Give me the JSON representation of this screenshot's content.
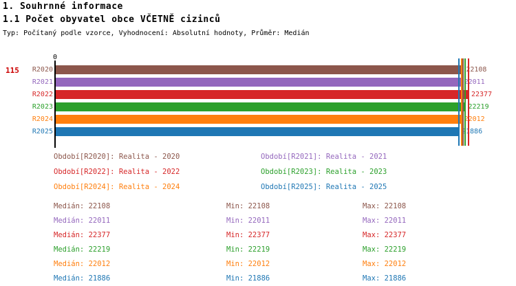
{
  "header": {
    "title": "1. Souhrnné informace",
    "subtitle": "1.1 Počet obyvatel obce VČETNĚ cizinců",
    "meta": "Typ: Počítaný podle vzorce, Vyhodnocení: Absolutní hodnoty, Průměr: Medián"
  },
  "chart": {
    "axis_left_value": "115",
    "axis_left_color": "#cc0000",
    "origin_label": "0",
    "rows": [
      {
        "label": "R2020",
        "value": 22108,
        "color": "#8c564b"
      },
      {
        "label": "R2021",
        "value": 22011,
        "color": "#9467bd"
      },
      {
        "label": "R2022",
        "value": 22377,
        "color": "#d62728"
      },
      {
        "label": "R2023",
        "value": 22219,
        "color": "#2ca02c"
      },
      {
        "label": "R2024",
        "value": 22012,
        "color": "#ff7f0e"
      },
      {
        "label": "R2025",
        "value": 21886,
        "color": "#1f77b4"
      }
    ]
  },
  "legend": {
    "columns": [
      [
        {
          "text": "Období[R2020]: Realita - 2020",
          "color": "#8c564b"
        },
        {
          "text": "Období[R2022]: Realita - 2022",
          "color": "#d62728"
        },
        {
          "text": "Období[R2024]: Realita - 2024",
          "color": "#ff7f0e"
        }
      ],
      [
        {
          "text": "Období[R2021]: Realita - 2021",
          "color": "#9467bd"
        },
        {
          "text": "Období[R2023]: Realita - 2023",
          "color": "#2ca02c"
        },
        {
          "text": "Období[R2025]: Realita - 2025",
          "color": "#1f77b4"
        }
      ]
    ]
  },
  "stats": {
    "column_labels": [
      "Medián",
      "Min",
      "Max"
    ],
    "rows": [
      {
        "color": "#8c564b",
        "median": 22108,
        "min": 22108,
        "max": 22108
      },
      {
        "color": "#9467bd",
        "median": 22011,
        "min": 22011,
        "max": 22011
      },
      {
        "color": "#d62728",
        "median": 22377,
        "min": 22377,
        "max": 22377
      },
      {
        "color": "#2ca02c",
        "median": 22219,
        "min": 22219,
        "max": 22219
      },
      {
        "color": "#ff7f0e",
        "median": 22012,
        "min": 22012,
        "max": 22012
      },
      {
        "color": "#1f77b4",
        "median": 21886,
        "min": 21886,
        "max": 21886
      }
    ]
  },
  "chart_data": {
    "type": "bar",
    "orientation": "horizontal",
    "title": "1.1 Počet obyvatel obce VČETNĚ cizinců",
    "categories": [
      "R2020",
      "R2021",
      "R2022",
      "R2023",
      "R2024",
      "R2025"
    ],
    "values": [
      22108,
      22011,
      22377,
      22219,
      22012,
      21886
    ],
    "colors": [
      "#8c564b",
      "#9467bd",
      "#d62728",
      "#2ca02c",
      "#ff7f0e",
      "#1f77b4"
    ],
    "series_legend": [
      "Realita - 2020",
      "Realita - 2021",
      "Realita - 2022",
      "Realita - 2023",
      "Realita - 2024",
      "Realita - 2025"
    ],
    "data_labels_shown": true,
    "value_markers": "colored vertical line at each series value",
    "origin_tick_label": "0",
    "left_axis_annotation": "115",
    "grid": false,
    "xlabel": "",
    "ylabel": "",
    "median": [
      22108,
      22011,
      22377,
      22219,
      22012,
      21886
    ],
    "min": [
      22108,
      22011,
      22377,
      22219,
      22012,
      21886
    ],
    "max": [
      22108,
      22011,
      22377,
      22219,
      22012,
      21886
    ]
  }
}
